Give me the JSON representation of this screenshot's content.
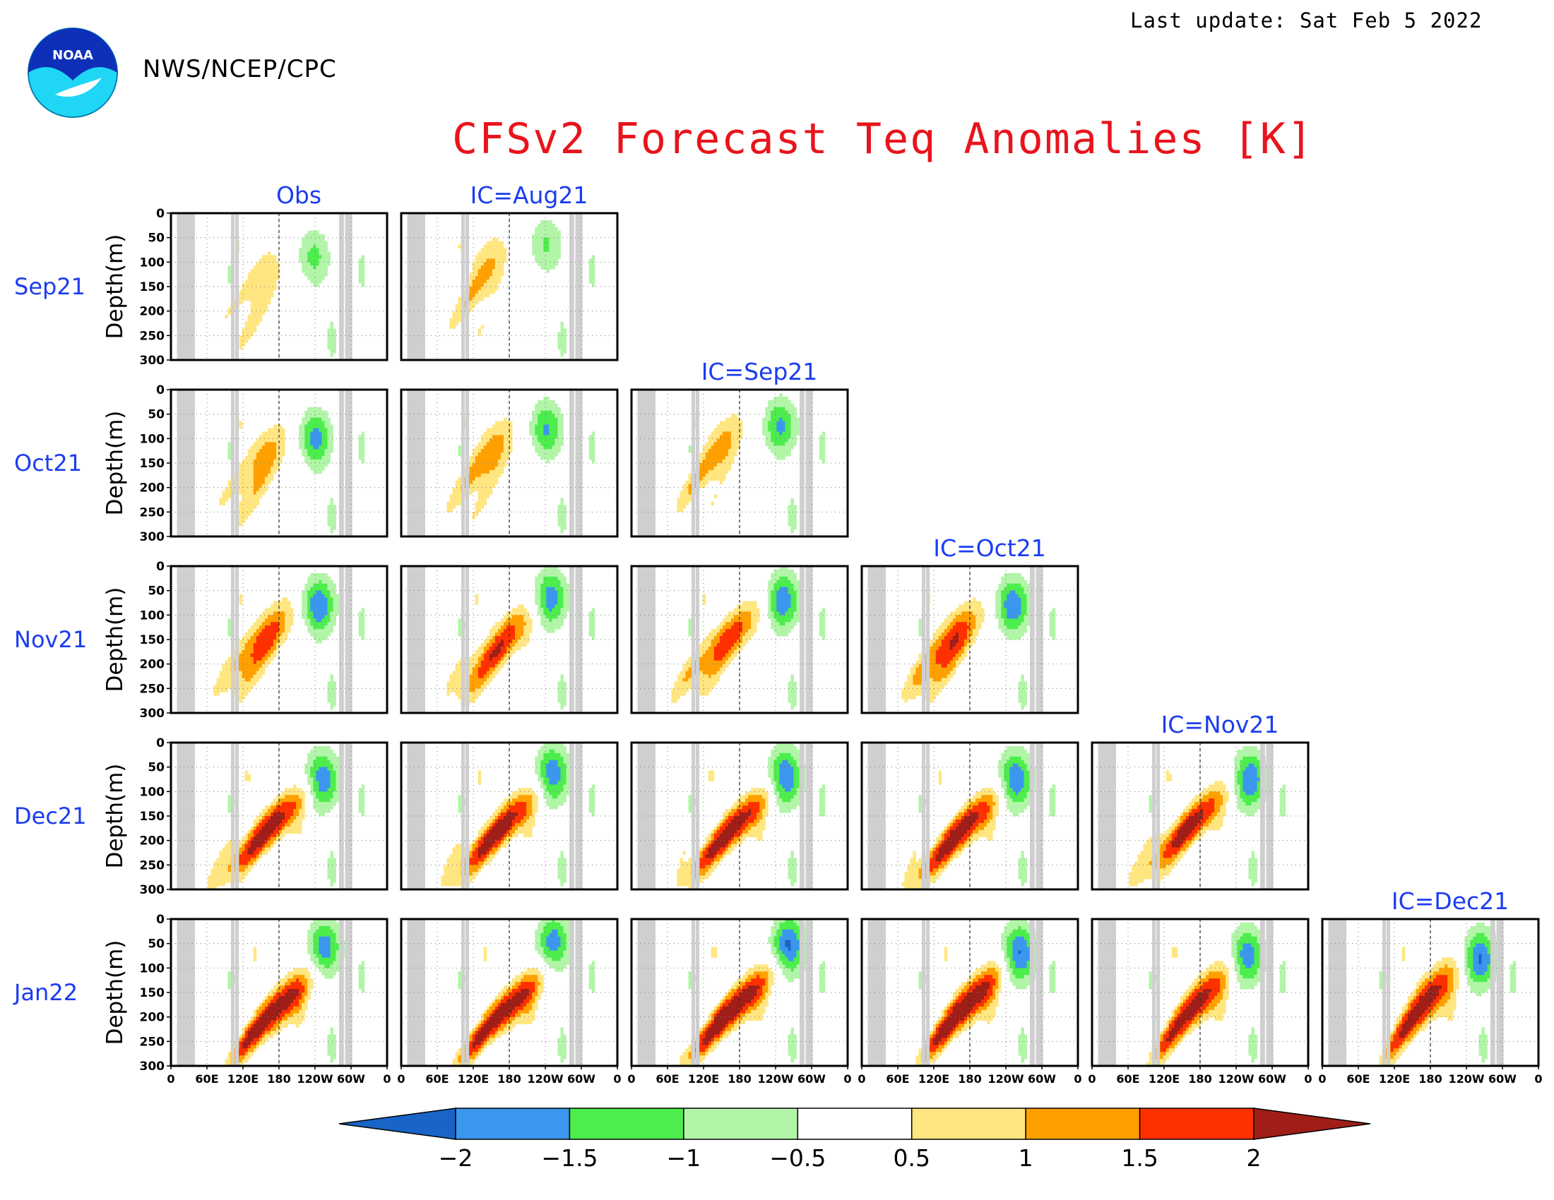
{
  "header": {
    "org": "NWS/NCEP/CPC",
    "last_update": "Last update: Sat Feb 5 2022",
    "logo_text": "NOAA"
  },
  "colors": {
    "title": "#e8141c",
    "panel_labels": "#1b3cf0",
    "land_mask": "#cfcfcf"
  },
  "chart_data": {
    "type": "heatmap",
    "title": "CFSv2 Forecast Teq Anomalies [K]",
    "ylabel": "Depth(m)",
    "y_ticks": [
      "0",
      "50",
      "100",
      "150",
      "200",
      "250",
      "300"
    ],
    "ylim": [
      300,
      0
    ],
    "x_ticks": [
      "0",
      "60E",
      "120E",
      "180",
      "120W",
      "60W",
      "0"
    ],
    "xlim_deg_east": [
      0,
      360
    ],
    "columns": [
      "Obs",
      "IC=Aug21",
      "IC=Sep21",
      "IC=Oct21",
      "IC=Nov21",
      "IC=Dec21"
    ],
    "rows": [
      "Sep21",
      "Oct21",
      "Nov21",
      "Dec21",
      "Jan22"
    ],
    "colorbar": {
      "levels": [
        "−2",
        "−1.5",
        "−1",
        "−0.5",
        "0.5",
        "1",
        "1.5",
        "2"
      ],
      "colors": [
        "#1a64c8",
        "#3b97ee",
        "#4ded4d",
        "#b2f5a8",
        "#ffffff",
        "#ffe680",
        "#ffa000",
        "#ff3000",
        "#a01e18"
      ]
    },
    "panels": [
      {
        "row": 0,
        "col": 0,
        "warm": 0.9,
        "warm_lon": 155,
        "warm_depth": 135,
        "warm_tilt": -0.2,
        "cold": 1.15,
        "cold_lon": 238,
        "cold_depth": 90
      },
      {
        "row": 0,
        "col": 1,
        "warm": 1.1,
        "warm_lon": 145,
        "warm_depth": 115,
        "warm_tilt": -0.2,
        "cold": 1.05,
        "cold_lon": 242,
        "cold_depth": 65
      },
      {
        "row": 1,
        "col": 0,
        "warm": 1.3,
        "warm_lon": 158,
        "warm_depth": 140,
        "warm_tilt": -0.3,
        "cold": 1.7,
        "cold_lon": 240,
        "cold_depth": 100
      },
      {
        "row": 1,
        "col": 1,
        "warm": 1.35,
        "warm_lon": 152,
        "warm_depth": 130,
        "warm_tilt": -0.3,
        "cold": 1.55,
        "cold_lon": 242,
        "cold_depth": 80
      },
      {
        "row": 1,
        "col": 2,
        "warm": 1.25,
        "warm_lon": 150,
        "warm_depth": 120,
        "warm_tilt": -0.3,
        "cold": 1.6,
        "cold_lon": 248,
        "cold_depth": 75
      },
      {
        "row": 2,
        "col": 0,
        "warm": 1.85,
        "warm_lon": 160,
        "warm_depth": 145,
        "warm_tilt": -0.4,
        "cold": 1.95,
        "cold_lon": 246,
        "cold_depth": 80
      },
      {
        "row": 2,
        "col": 1,
        "warm": 1.9,
        "warm_lon": 170,
        "warm_depth": 155,
        "warm_tilt": -0.5,
        "cold": 1.85,
        "cold_lon": 248,
        "cold_depth": 65
      },
      {
        "row": 2,
        "col": 2,
        "warm": 1.85,
        "warm_lon": 165,
        "warm_depth": 145,
        "warm_tilt": -0.5,
        "cold": 1.9,
        "cold_lon": 252,
        "cold_depth": 70
      },
      {
        "row": 2,
        "col": 3,
        "warm": 2.05,
        "warm_lon": 155,
        "warm_depth": 150,
        "warm_tilt": -0.4,
        "cold": 1.9,
        "cold_lon": 252,
        "cold_depth": 80
      },
      {
        "row": 3,
        "col": 0,
        "warm": 2.3,
        "warm_lon": 172,
        "warm_depth": 165,
        "warm_tilt": -0.6,
        "cold": 2.0,
        "cold_lon": 252,
        "cold_depth": 75
      },
      {
        "row": 3,
        "col": 1,
        "warm": 2.3,
        "warm_lon": 175,
        "warm_depth": 165,
        "warm_tilt": -0.6,
        "cold": 2.0,
        "cold_lon": 252,
        "cold_depth": 65
      },
      {
        "row": 3,
        "col": 2,
        "warm": 2.3,
        "warm_lon": 178,
        "warm_depth": 165,
        "warm_tilt": -0.6,
        "cold": 2.1,
        "cold_lon": 256,
        "cold_depth": 70
      },
      {
        "row": 3,
        "col": 3,
        "warm": 2.35,
        "warm_lon": 175,
        "warm_depth": 170,
        "warm_tilt": -0.6,
        "cold": 2.05,
        "cold_lon": 256,
        "cold_depth": 75
      },
      {
        "row": 3,
        "col": 4,
        "warm": 2.2,
        "warm_lon": 172,
        "warm_depth": 160,
        "warm_tilt": -0.6,
        "cold": 2.05,
        "cold_lon": 262,
        "cold_depth": 75
      },
      {
        "row": 4,
        "col": 0,
        "warm": 2.4,
        "warm_lon": 185,
        "warm_depth": 175,
        "warm_tilt": -0.55,
        "cold": 1.9,
        "cold_lon": 256,
        "cold_depth": 60
      },
      {
        "row": 4,
        "col": 1,
        "warm": 2.35,
        "warm_lon": 185,
        "warm_depth": 175,
        "warm_tilt": -0.6,
        "cold": 1.85,
        "cold_lon": 254,
        "cold_depth": 50
      },
      {
        "row": 4,
        "col": 2,
        "warm": 2.5,
        "warm_lon": 182,
        "warm_depth": 170,
        "warm_tilt": -0.6,
        "cold": 2.2,
        "cold_lon": 262,
        "cold_depth": 55
      },
      {
        "row": 4,
        "col": 3,
        "warm": 2.5,
        "warm_lon": 185,
        "warm_depth": 165,
        "warm_tilt": -0.55,
        "cold": 2.2,
        "cold_lon": 262,
        "cold_depth": 70
      },
      {
        "row": 4,
        "col": 4,
        "warm": 2.2,
        "warm_lon": 182,
        "warm_depth": 165,
        "warm_tilt": -0.5,
        "cold": 1.95,
        "cold_lon": 258,
        "cold_depth": 75
      },
      {
        "row": 4,
        "col": 5,
        "warm": 2.3,
        "warm_lon": 180,
        "warm_depth": 160,
        "warm_tilt": -0.45,
        "cold": 2.1,
        "cold_lon": 262,
        "cold_depth": 80
      }
    ]
  }
}
